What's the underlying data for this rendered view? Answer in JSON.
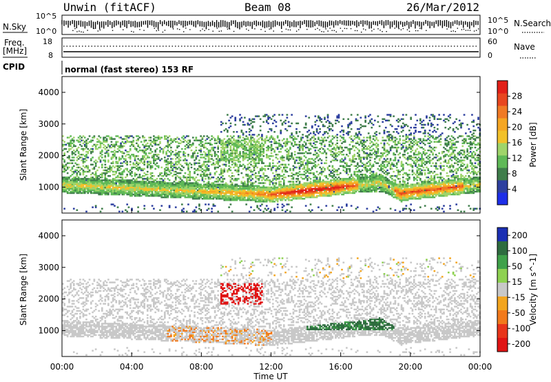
{
  "header": {
    "station": "Unwin (fitACF)",
    "beam": "Beam 08",
    "date": "26/Mar/2012"
  },
  "noise_panel": {
    "left_label": "N.Sky",
    "right_label": "N.Search",
    "left_ticks": [
      "10^5",
      "10^0"
    ],
    "right_ticks": [
      "10^5",
      "10^0"
    ]
  },
  "freq_panel": {
    "left_label_line1": "Freq.",
    "left_label_line2": "[MHz]",
    "right_label": "Nave",
    "left_ticks": [
      "18",
      "8"
    ],
    "right_ticks": [
      "60",
      "0"
    ]
  },
  "cpid": {
    "label": "CPID",
    "mode": "normal (fast stereo) 153 RF"
  },
  "chart_data": [
    {
      "type": "heatmap",
      "title": "",
      "xlabel": "Time UT",
      "ylabel": "Slant Range [km]",
      "xlim_hours": [
        0,
        24
      ],
      "ylim": [
        180,
        4500
      ],
      "x_ticks": [
        "00:00",
        "04:00",
        "08:00",
        "12:00",
        "16:00",
        "20:00",
        "00:00"
      ],
      "y_ticks": [
        1000,
        2000,
        3000,
        4000
      ],
      "colorbar": {
        "label": "Power [dB]",
        "ticks": [
          4,
          8,
          12,
          16,
          20,
          24,
          28
        ],
        "colors": [
          "#1d2ee8",
          "#2d3f9f",
          "#3f7d4b",
          "#5fb957",
          "#9fd46a",
          "#f2c12a",
          "#f5a623",
          "#f07a25",
          "#e8461f",
          "#e22018"
        ]
      },
      "features": [
        {
          "kind": "band",
          "name": "low-range power band",
          "t_start": 0,
          "t_end": 24,
          "range_km_start": 900,
          "range_km_end": 1000,
          "peak_db": 28,
          "peak_time": 14.5
        },
        {
          "kind": "scatter_region",
          "name": "far range echoes",
          "t_start": 0,
          "t_end": 24,
          "range_km_min": 1000,
          "range_km_max": 3300,
          "typical_db": 8
        }
      ]
    },
    {
      "type": "heatmap",
      "title": "",
      "xlabel": "Time UT",
      "ylabel": "Slant Range [km]",
      "xlim_hours": [
        0,
        24
      ],
      "ylim": [
        180,
        4500
      ],
      "x_ticks": [
        "00:00",
        "04:00",
        "08:00",
        "12:00",
        "16:00",
        "20:00",
        "00:00"
      ],
      "y_ticks": [
        1000,
        2000,
        3000,
        4000
      ],
      "colorbar": {
        "label": "Velocity [m s^-1]",
        "ticks": [
          200,
          100,
          50,
          15,
          -15,
          -50,
          -100,
          -200
        ],
        "colors": [
          "#1b2fb3",
          "#2e6c3f",
          "#3fa14a",
          "#8ed151",
          "#c8c8c8",
          "#f3a51f",
          "#f27a1c",
          "#e8351b",
          "#e01414"
        ]
      },
      "features": [
        {
          "kind": "band",
          "name": "ground scatter",
          "t_start": 0,
          "t_end": 24,
          "range_km_start": 800,
          "range_km_end": 1600,
          "velocity": 0
        },
        {
          "kind": "patch",
          "name": "negative velocity patch",
          "t_center": 10.2,
          "range_km": 2100,
          "velocity": -200
        },
        {
          "kind": "patch",
          "name": "positive velocity band",
          "t_start": 14,
          "t_end": 19,
          "range_km": 1300,
          "velocity": 80
        }
      ]
    }
  ],
  "colors": {
    "axis": "#000000",
    "background": "#ffffff"
  }
}
